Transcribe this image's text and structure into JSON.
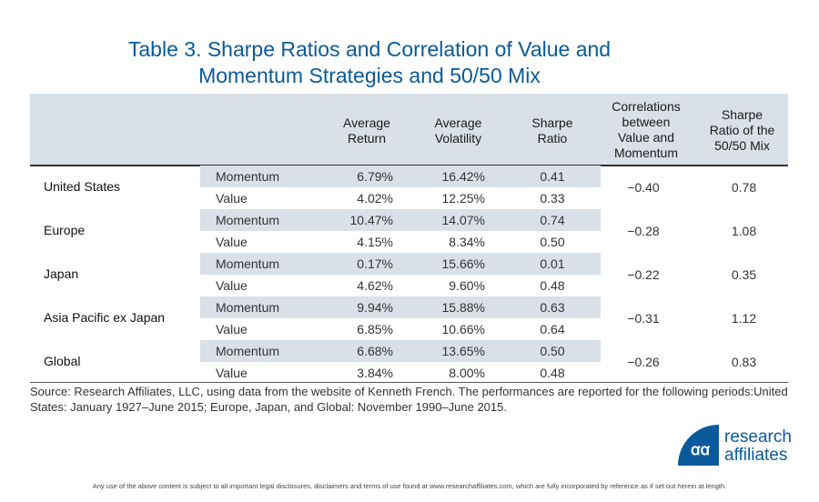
{
  "title_line1": "Table 3. Sharpe Ratios and Correlation of Value and",
  "title_line2": "Momentum Strategies and 50/50 Mix",
  "headers": {
    "avg_return": [
      "Average",
      "Return"
    ],
    "avg_volatility": [
      "Average",
      "Volatility"
    ],
    "sharpe": [
      "Sharpe",
      "Ratio"
    ],
    "correlations": [
      "Correlations",
      "between",
      "Value and",
      "Momentum"
    ],
    "sharpe_mix": [
      "Sharpe",
      "Ratio of the",
      "50/50 Mix"
    ]
  },
  "regions": [
    {
      "name": "United States",
      "correlation": "−0.40",
      "sharpe_mix": "0.78",
      "rows": [
        {
          "strategy": "Momentum",
          "return": "6.79%",
          "volatility": "16.42%",
          "sharpe": "0.41"
        },
        {
          "strategy": "Value",
          "return": "4.02%",
          "volatility": "12.25%",
          "sharpe": "0.33"
        }
      ]
    },
    {
      "name": "Europe",
      "correlation": "−0.28",
      "sharpe_mix": "1.08",
      "rows": [
        {
          "strategy": "Momentum",
          "return": "10.47%",
          "volatility": "14.07%",
          "sharpe": "0.74"
        },
        {
          "strategy": "Value",
          "return": "4.15%",
          "volatility": "8.34%",
          "sharpe": "0.50"
        }
      ]
    },
    {
      "name": "Japan",
      "correlation": "−0.22",
      "sharpe_mix": "0.35",
      "rows": [
        {
          "strategy": "Momentum",
          "return": "0.17%",
          "volatility": "15.66%",
          "sharpe": "0.01"
        },
        {
          "strategy": "Value",
          "return": "4.62%",
          "volatility": "9.60%",
          "sharpe": "0.48"
        }
      ]
    },
    {
      "name": "Asia Pacific ex Japan",
      "correlation": "−0.31",
      "sharpe_mix": "1.12",
      "rows": [
        {
          "strategy": "Momentum",
          "return": "9.94%",
          "volatility": "15.88%",
          "sharpe": "0.63"
        },
        {
          "strategy": "Value",
          "return": "6.85%",
          "volatility": "10.66%",
          "sharpe": "0.64"
        }
      ]
    },
    {
      "name": "Global",
      "correlation": "−0.26",
      "sharpe_mix": "0.83",
      "rows": [
        {
          "strategy": "Momentum",
          "return": "6.68%",
          "volatility": "13.65%",
          "sharpe": "0.50"
        },
        {
          "strategy": "Value",
          "return": "3.84%",
          "volatility": "8.00%",
          "sharpe": "0.48"
        }
      ]
    }
  ],
  "source": "Source: Research Affiliates, LLC, using data from the website of Kenneth French. The performances are reported for the following periods:United States: January 1927–June 2015; Europe, Japan, and Global: November 1990–June 2015.",
  "logo": {
    "line1": "research",
    "line2": "affiliates",
    "color": "#0a5a9c"
  },
  "footer": "Any use of the above content is subject to all important legal disclosures, disclaimers and terms of use found at www.researchaffiliates.com, which are fully incorporated by reference as if set out herein at length."
}
